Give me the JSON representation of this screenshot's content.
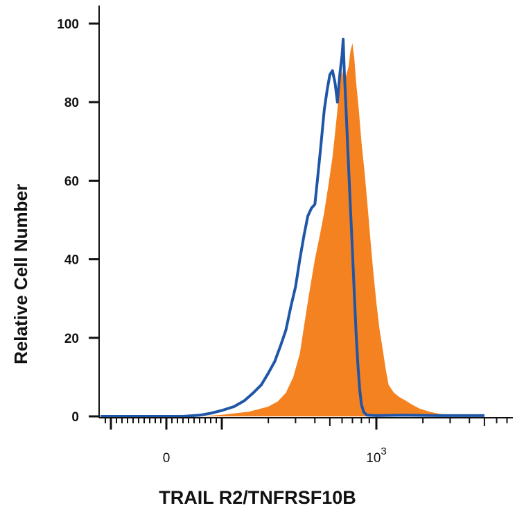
{
  "chart_data": {
    "type": "area",
    "xlabel": "TRAIL R2/TNFRSF10B",
    "ylabel": "Relative Cell Number",
    "x_scale": "biexponential (log above 0)",
    "ylim": [
      0,
      100
    ],
    "y_ticks": [
      0,
      20,
      40,
      60,
      80,
      100
    ],
    "x_tick_labels": [
      {
        "value": 0,
        "base": "0",
        "exp": ""
      },
      {
        "value": 1000,
        "base": "10",
        "exp": "3"
      }
    ],
    "grid": false,
    "legend": "none",
    "series": [
      {
        "style": "filled",
        "color": "#f58220",
        "points": [
          [
            63,
            0
          ],
          [
            100,
            0.4
          ],
          [
            150,
            1.2
          ],
          [
            200,
            2.5
          ],
          [
            230,
            3.8
          ],
          [
            260,
            6
          ],
          [
            290,
            10
          ],
          [
            320,
            16
          ],
          [
            350,
            26
          ],
          [
            370,
            32
          ],
          [
            400,
            40
          ],
          [
            430,
            46
          ],
          [
            460,
            52
          ],
          [
            490,
            59
          ],
          [
            520,
            66
          ],
          [
            540,
            72
          ],
          [
            560,
            78
          ],
          [
            580,
            86
          ],
          [
            600,
            88
          ],
          [
            620,
            85
          ],
          [
            640,
            87
          ],
          [
            660,
            89
          ],
          [
            680,
            93
          ],
          [
            700,
            95
          ],
          [
            720,
            91
          ],
          [
            740,
            85
          ],
          [
            770,
            78
          ],
          [
            800,
            70
          ],
          [
            840,
            62
          ],
          [
            880,
            53
          ],
          [
            920,
            44
          ],
          [
            960,
            36
          ],
          [
            1000,
            29
          ],
          [
            1050,
            22
          ],
          [
            1100,
            17
          ],
          [
            1150,
            12
          ],
          [
            1200,
            8
          ],
          [
            1300,
            6
          ],
          [
            1400,
            5
          ],
          [
            1550,
            4
          ],
          [
            1700,
            3
          ],
          [
            1900,
            2
          ],
          [
            2200,
            1.2
          ],
          [
            2600,
            0.6
          ],
          [
            3300,
            0.2
          ],
          [
            5000,
            0
          ]
        ]
      },
      {
        "style": "line",
        "color": "#1f56a8",
        "points": [
          [
            -150,
            0
          ],
          [
            -50,
            0
          ],
          [
            0,
            0
          ],
          [
            30,
            0
          ],
          [
            60,
            0.3
          ],
          [
            80,
            0.8
          ],
          [
            100,
            1.5
          ],
          [
            120,
            2.5
          ],
          [
            140,
            4
          ],
          [
            160,
            6
          ],
          [
            180,
            8
          ],
          [
            200,
            11
          ],
          [
            220,
            14
          ],
          [
            240,
            18
          ],
          [
            260,
            22
          ],
          [
            280,
            28
          ],
          [
            300,
            33
          ],
          [
            320,
            40
          ],
          [
            340,
            46
          ],
          [
            360,
            51
          ],
          [
            380,
            53
          ],
          [
            400,
            54
          ],
          [
            420,
            62
          ],
          [
            440,
            70
          ],
          [
            460,
            78
          ],
          [
            480,
            83
          ],
          [
            500,
            87
          ],
          [
            520,
            88
          ],
          [
            540,
            85
          ],
          [
            560,
            80
          ],
          [
            580,
            87
          ],
          [
            600,
            92
          ],
          [
            610,
            96
          ],
          [
            620,
            88
          ],
          [
            640,
            76
          ],
          [
            660,
            64
          ],
          [
            680,
            53
          ],
          [
            700,
            42
          ],
          [
            720,
            31
          ],
          [
            740,
            21
          ],
          [
            760,
            13
          ],
          [
            780,
            7
          ],
          [
            800,
            3
          ],
          [
            830,
            1
          ],
          [
            870,
            0.3
          ],
          [
            1000,
            0.2
          ],
          [
            1500,
            0.3
          ],
          [
            2500,
            0.2
          ],
          [
            5000,
            0.2
          ]
        ]
      }
    ]
  }
}
